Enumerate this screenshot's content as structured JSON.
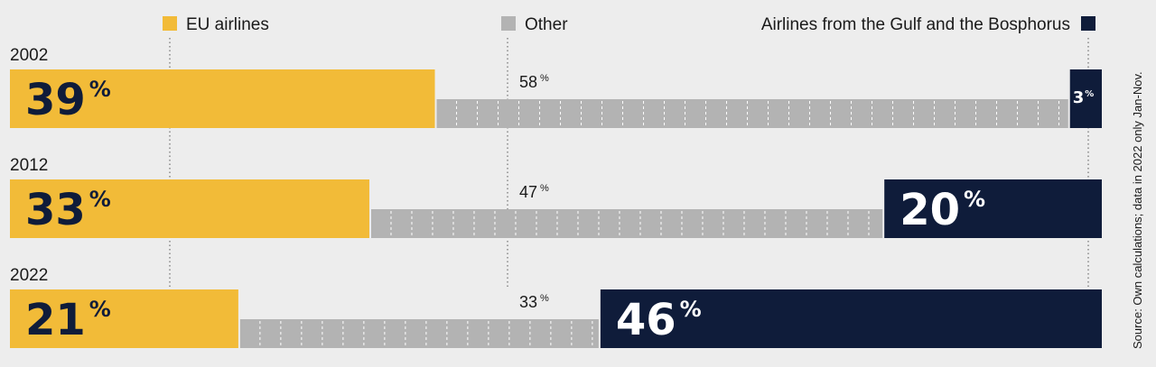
{
  "chart_data": {
    "type": "bar",
    "stacked": true,
    "orientation": "horizontal",
    "unit": "%",
    "categories": [
      "2002",
      "2012",
      "2022"
    ],
    "series": [
      {
        "name": "EU airlines",
        "values": [
          39,
          33,
          21
        ],
        "color": "#f2bb38"
      },
      {
        "name": "Other",
        "values": [
          58,
          47,
          33
        ],
        "color": "#b3b3b3"
      },
      {
        "name": "Airlines from the Gulf and the Bosphorus",
        "values": [
          3,
          20,
          46
        ],
        "color": "#0f1c3a"
      }
    ],
    "legend_placement": "top",
    "note": "Source: Own calculations; data in 2022 only Jan-Nov."
  }
}
